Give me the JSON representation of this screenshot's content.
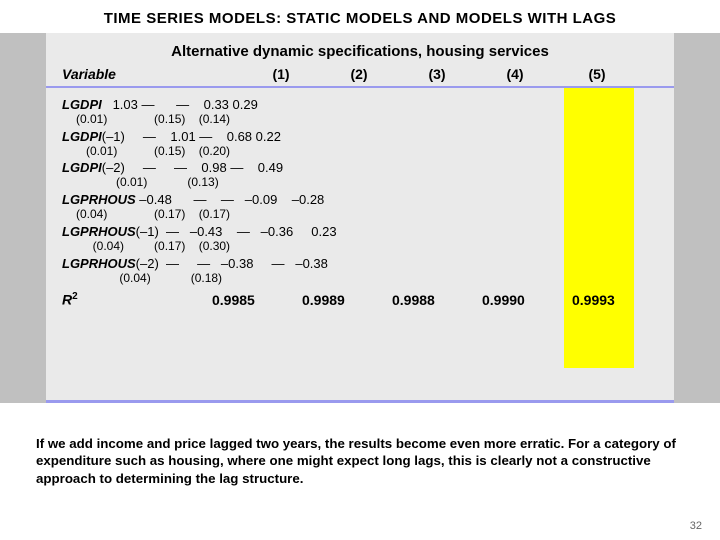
{
  "title": "TIME SERIES MODELS:  STATIC MODELS AND MODELS WITH LAGS",
  "table": {
    "subtitle": "Alternative dynamic specifications, housing services",
    "var_header": "Variable",
    "col_headers": [
      "(1)",
      "(2)",
      "(3)",
      "(4)",
      "(5)"
    ],
    "rows": [
      {
        "name": "LGDPI",
        "suffix": "",
        "val_line": "   1.03 —      —    0.33 0.29",
        "se_line": "(0.01)              (0.15)    (0.14)"
      },
      {
        "name": "LGDPI",
        "suffix": "(–1)",
        "val_line": "     —    1.01 —    0.68 0.22",
        "se_line": "   (0.01)           (0.15)    (0.20)"
      },
      {
        "name": "LGDPI",
        "suffix": "(–2)",
        "val_line": "     —     —    0.98 —    0.49",
        "se_line": "            (0.01)            (0.13)"
      },
      {
        "name": "LGPRHOUS",
        "suffix": "",
        "val_line": " –0.48      —    —   –0.09    –0.28",
        "se_line": "(0.04)              (0.17)    (0.17)"
      },
      {
        "name": "LGPRHOUS",
        "suffix": "(–1)",
        "val_line": "  —   –0.43    —   –0.36     0.23",
        "se_line": "     (0.04)         (0.17)    (0.30)"
      },
      {
        "name": "LGPRHOUS",
        "suffix": "(–2)",
        "val_line": "  —     —   –0.38     —   –0.38",
        "se_line": "             (0.04)            (0.18)"
      }
    ],
    "r2_label": "R",
    "r2_sup": "2",
    "r2_values": [
      "0.9985",
      "0.9989",
      "0.9988",
      "0.9990",
      "0.9993"
    ]
  },
  "caption": "If we add income and price lagged two years, the results become even more erratic.  For a category of expenditure such as housing, where one might expect long lags, this is clearly not a constructive approach to determining the lag structure.",
  "page_number": "32",
  "colors": {
    "grey_block": "#c0c0c0",
    "card_bg": "#eaeaea",
    "highlight": "#ffff00",
    "rule": "#9a9aee",
    "pagenum": "#666666"
  }
}
